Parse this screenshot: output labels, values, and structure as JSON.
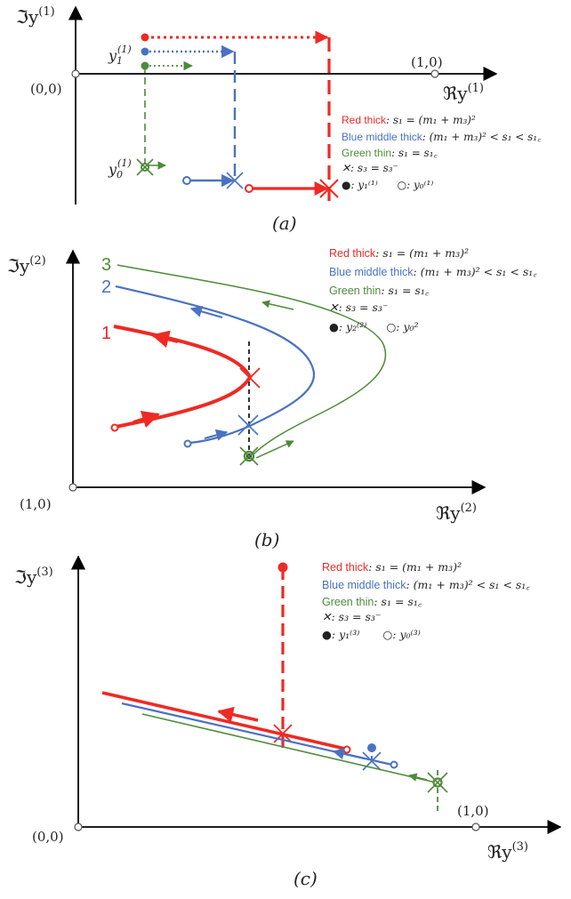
{
  "colors": {
    "red": "#ee2a24",
    "blue": "#4a72c2",
    "green": "#4e8a3a",
    "axis": "#000000",
    "background": "#ffffff"
  },
  "panels": [
    {
      "caption": "(a)",
      "y_axis": "ℑy",
      "y_axis_sup": "(1)",
      "x_axis": "ℜy",
      "x_axis_sup": "(1)",
      "origin": "(0,0)",
      "point": "(1,0)",
      "y1_label": "y",
      "y1_sub": "1",
      "y1_sup": "(1)",
      "y0_label": "y",
      "y0_sub": "0",
      "y0_sup": "(1)",
      "legend": {
        "red_name": "Red thick",
        "red_cond": ": s₁ = (m₁ + m₃)²",
        "blue_name": "Blue middle thick",
        "blue_cond": ": (m₁ + m₃)² < s₁ < s₁꜀",
        "green_name": "Green thin",
        "green_cond": ": s₁ = s₁꜀",
        "cross": "✕: s₃ = s₃⁻",
        "filled_dot": "●",
        "filled_text": ": y₁⁽¹⁾",
        "open_dot": "○",
        "open_text": ": y₀⁽¹⁾"
      }
    },
    {
      "caption": "(b)",
      "y_axis": "ℑy",
      "y_axis_sup": "(2)",
      "x_axis": "ℜy",
      "x_axis_sup": "(2)",
      "origin": "(1,0)",
      "curve_labels": [
        "1",
        "2",
        "3"
      ],
      "legend": {
        "red_name": "Red thick",
        "red_cond": ": s₁ = (m₁ + m₃)²",
        "blue_name": "Blue middle thick",
        "blue_cond": ": (m₁ + m₃)² < s₁ < s₁꜀",
        "green_name": "Green thin",
        "green_cond": ": s₁ = s₁꜀",
        "cross": "✕: s₃ = s₃⁻",
        "filled_dot": "●",
        "filled_text": ": y₂⁽²⁾",
        "open_dot": "○",
        "open_text": ": y₀²"
      }
    },
    {
      "caption": "(c)",
      "y_axis": "ℑy",
      "y_axis_sup": "(3)",
      "x_axis": "ℜy",
      "x_axis_sup": "(3)",
      "origin": "(0,0)",
      "point": "(1,0)",
      "legend": {
        "red_name": "Red thick",
        "red_cond": ": s₁ = (m₁ + m₃)²",
        "blue_name": "Blue middle thick",
        "blue_cond": ": (m₁ + m₃)² < s₁ < s₁꜀",
        "green_name": "Green thin",
        "green_cond": ": s₁ = s₁꜀",
        "cross": "✕: s₃ = s₃⁻",
        "filled_dot": "●",
        "filled_text": ": y₁⁽³⁾",
        "open_dot": "○",
        "open_text": ": y₀⁽³⁾"
      }
    }
  ]
}
